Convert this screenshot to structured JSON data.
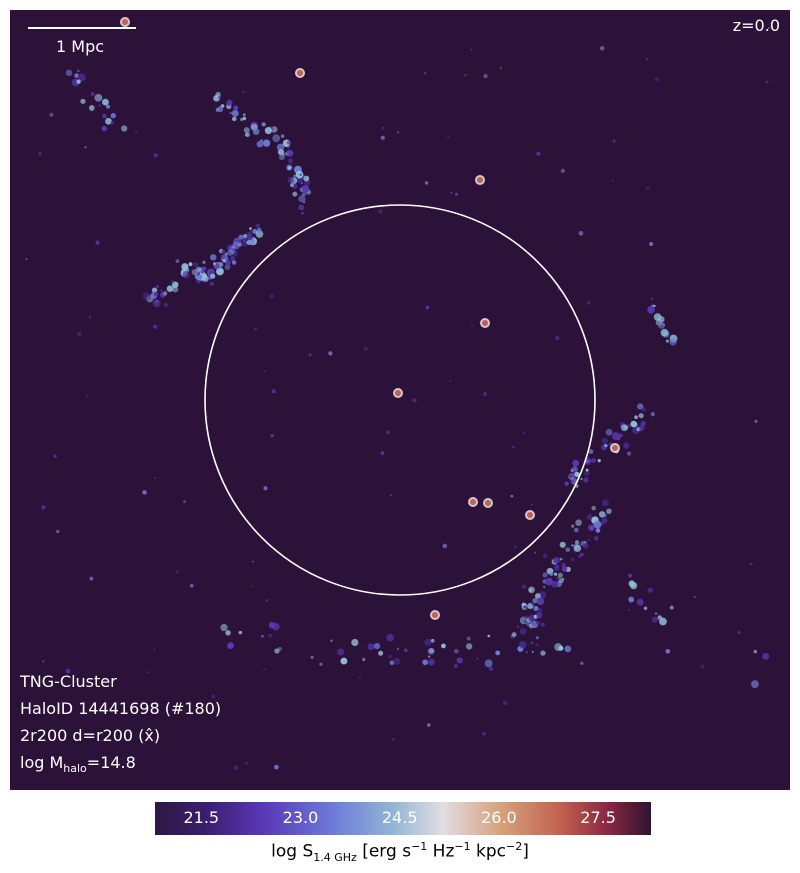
{
  "scalebar": {
    "label": "1 Mpc"
  },
  "redshift": "z=0.0",
  "info": {
    "simulation": "TNG-Cluster",
    "halo_id": "HaloID 14441698 (#180)",
    "extent": "2r200 d=r200 (x̂)",
    "mass_prefix": "log M",
    "mass_sub": "halo",
    "mass_value": "=14.8"
  },
  "colorbar": {
    "ticks": [
      "21.5",
      "23.0",
      "24.5",
      "26.0",
      "27.5"
    ],
    "tick_values": [
      21.5,
      23.0,
      24.5,
      26.0,
      27.5
    ],
    "range": [
      20.8,
      28.3
    ],
    "label_prefix": "log S",
    "label_sub": "1.4 GHz",
    "label_mid": " [erg s",
    "label_sup1": "−1",
    "label_mid2": " Hz",
    "label_sup2": "−1",
    "label_mid3": " kpc",
    "label_sup3": "−2",
    "label_end": "]"
  },
  "colors": {
    "background": "#2c1238",
    "low": "#5a38b8",
    "mid": "#92b6d6",
    "high": "#c0604e"
  }
}
